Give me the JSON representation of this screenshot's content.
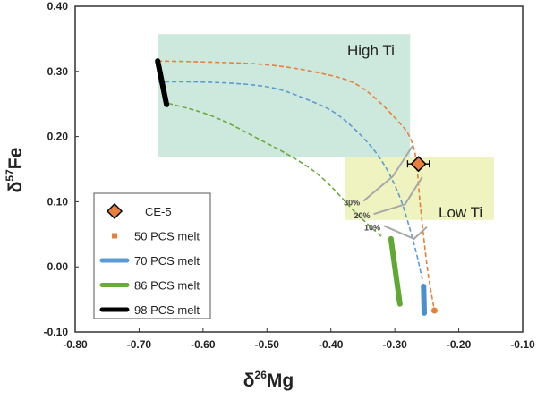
{
  "chart_data": {
    "type": "line",
    "xlabel": "δ26Mg",
    "xlabel_parts": {
      "delta": "δ",
      "sup": "26",
      "el": "Mg"
    },
    "ylabel": "δ57Fe",
    "ylabel_parts": {
      "delta": "δ",
      "sup": "57",
      "el": "Fe"
    },
    "xlim": [
      -0.8,
      -0.1
    ],
    "ylim": [
      -0.1,
      0.4
    ],
    "xticks": [
      "-0.80",
      "-0.70",
      "-0.60",
      "-0.50",
      "-0.40",
      "-0.30",
      "-0.20",
      "-0.10"
    ],
    "xtick_values": [
      -0.8,
      -0.7,
      -0.6,
      -0.5,
      -0.4,
      -0.3,
      -0.2,
      -0.1
    ],
    "yticks": [
      "-0.10",
      "0.00",
      "0.10",
      "0.20",
      "0.30",
      "0.40"
    ],
    "ytick_values": [
      -0.1,
      0.0,
      0.1,
      0.2,
      0.3,
      0.4
    ],
    "grid": false,
    "regions": [
      {
        "label": "High Ti",
        "x": [
          -0.671,
          -0.276
        ],
        "y": [
          0.169,
          0.357
        ],
        "color": "#cde8dc"
      },
      {
        "label": "Low Ti",
        "x": [
          -0.378,
          -0.145
        ],
        "y": [
          0.072,
          0.169
        ],
        "color": "#eef3c0"
      }
    ],
    "model_curves": [
      {
        "color": "#e8803a",
        "points": [
          [
            -0.671,
            0.316
          ],
          [
            -0.58,
            0.314
          ],
          [
            -0.498,
            0.31
          ],
          [
            -0.42,
            0.298
          ],
          [
            -0.358,
            0.279
          ],
          [
            -0.302,
            0.231
          ],
          [
            -0.271,
            0.185
          ],
          [
            -0.26,
            0.093
          ],
          [
            -0.249,
            -0.003
          ],
          [
            -0.238,
            -0.067
          ]
        ]
      },
      {
        "color": "#5b9bd5",
        "points": [
          [
            -0.671,
            0.284
          ],
          [
            -0.58,
            0.283
          ],
          [
            -0.498,
            0.276
          ],
          [
            -0.44,
            0.258
          ],
          [
            -0.386,
            0.231
          ],
          [
            -0.33,
            0.176
          ],
          [
            -0.295,
            0.114
          ],
          [
            -0.271,
            0.039
          ],
          [
            -0.257,
            -0.019
          ]
        ]
      },
      {
        "color": "#6aab3c",
        "points": [
          [
            -0.654,
            0.251
          ],
          [
            -0.59,
            0.233
          ],
          [
            -0.526,
            0.203
          ],
          [
            -0.428,
            0.148
          ],
          [
            -0.358,
            0.08
          ],
          [
            -0.319,
            0.045
          ]
        ]
      }
    ],
    "melt_tracks": [
      {
        "color": "#4a8fd0",
        "points": [
          [
            -0.255,
            -0.03
          ],
          [
            -0.254,
            -0.071
          ]
        ]
      },
      {
        "color": "#5fa834",
        "points": [
          [
            -0.306,
            0.043
          ],
          [
            -0.292,
            -0.057
          ]
        ]
      },
      {
        "color": "#000000",
        "points": [
          [
            -0.671,
            0.316
          ],
          [
            -0.657,
            0.249
          ]
        ]
      }
    ],
    "orange_endpoint": [
      -0.238,
      -0.067
    ],
    "melting_degree_lines": [
      {
        "label": "30%",
        "points": [
          [
            -0.349,
            0.101
          ],
          [
            -0.303,
            0.139
          ],
          [
            -0.272,
            0.186
          ]
        ]
      },
      {
        "label": "20%",
        "points": [
          [
            -0.333,
            0.081
          ],
          [
            -0.284,
            0.096
          ],
          [
            -0.257,
            0.138
          ]
        ]
      },
      {
        "label": "10%",
        "points": [
          [
            -0.317,
            0.063
          ],
          [
            -0.27,
            0.043
          ],
          [
            -0.25,
            0.061
          ]
        ]
      }
    ],
    "sample": {
      "label": "CE-5",
      "x": -0.263,
      "y": 0.158,
      "x_err": 0.017,
      "color": "#e8803a"
    },
    "legend": {
      "placement": "lower-left",
      "entries": [
        {
          "label": "CE-5",
          "marker": "diamond",
          "color": "#e8803a"
        },
        {
          "label": "50 PCS melt",
          "marker": "square",
          "color": "#e8803a"
        },
        {
          "label": "70 PCS melt",
          "marker": "line",
          "color": "#5b9bd5"
        },
        {
          "label": "86 PCS melt",
          "marker": "line",
          "color": "#6aab3c"
        },
        {
          "label": "98 PCS melt",
          "marker": "line",
          "color": "#000000"
        }
      ]
    }
  }
}
